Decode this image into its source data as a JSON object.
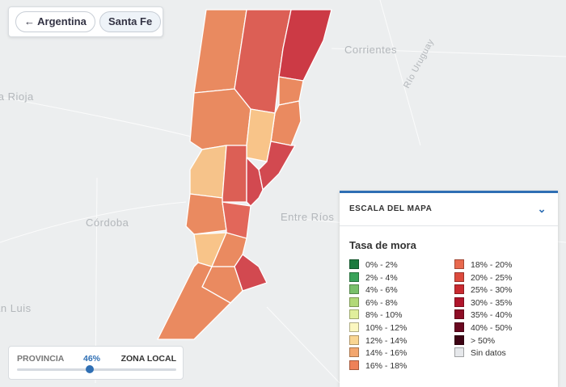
{
  "breadcrumb": {
    "back": "Argentina",
    "current": "Santa Fe"
  },
  "map_labels": {
    "corrientes": "Corrientes",
    "cordoba": "Córdoba",
    "entre_rios": "Entre Ríos",
    "san_luis": "San Luis",
    "la_rioja": "La Rioja",
    "rio_uruguay": "Río Uruguay"
  },
  "legend": {
    "title": "ESCALA DEL MAPA",
    "subtitle": "Tasa de mora",
    "items": [
      {
        "label": "0% - 2%",
        "color": "#1b7a3e"
      },
      {
        "label": "2% - 4%",
        "color": "#3aa35a"
      },
      {
        "label": "4% - 6%",
        "color": "#79c06a"
      },
      {
        "label": "6% - 8%",
        "color": "#b2d978"
      },
      {
        "label": "8% - 10%",
        "color": "#e0ef9c"
      },
      {
        "label": "10% - 12%",
        "color": "#fbf7c0"
      },
      {
        "label": "12% - 14%",
        "color": "#f9d592"
      },
      {
        "label": "14% - 16%",
        "color": "#f3a66e"
      },
      {
        "label": "16% - 18%",
        "color": "#ee8158"
      },
      {
        "label": "18% - 20%",
        "color": "#e8694e"
      },
      {
        "label": "20% - 25%",
        "color": "#dc4a3d"
      },
      {
        "label": "25% - 30%",
        "color": "#c92a30"
      },
      {
        "label": "30% - 35%",
        "color": "#b0152b"
      },
      {
        "label": "35% - 40%",
        "color": "#8e0e26"
      },
      {
        "label": "40% - 50%",
        "color": "#6a0820"
      },
      {
        "label": "> 50%",
        "color": "#3e0414"
      },
      {
        "label": "Sin datos",
        "color": "#e6e8eb"
      }
    ]
  },
  "slider": {
    "left": "PROVINCIA",
    "value": "46%",
    "right": "ZONA LOCAL"
  }
}
